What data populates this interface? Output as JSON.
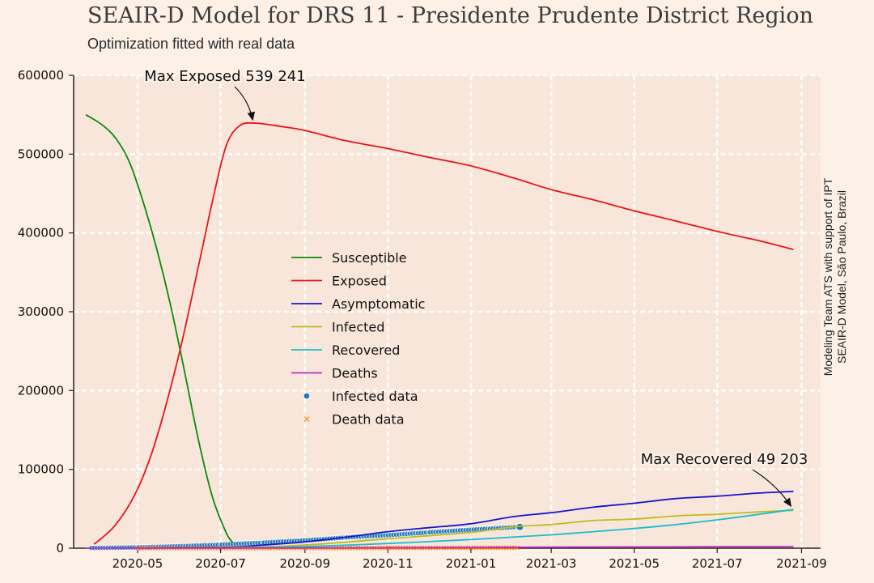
{
  "chart_data": {
    "type": "line",
    "title": "SEAIR-D Model for DRS 11 - Presidente Prudente District Region",
    "subtitle": "Optimization fitted with real data",
    "credit": [
      "Modeling Team ATS with support of IPT",
      "SEAIR-D Model, São Paulo, Brazil"
    ],
    "xlabel": "",
    "ylabel": "",
    "x_range": [
      "2020-03-15",
      "2021-09-15"
    ],
    "ylim": [
      0,
      600000
    ],
    "y_ticks": [
      0,
      100000,
      200000,
      300000,
      400000,
      500000,
      600000
    ],
    "x_ticks": [
      "2020-05",
      "2020-07",
      "2020-09",
      "2020-11",
      "2021-01",
      "2021-03",
      "2021-05",
      "2021-07",
      "2021-09"
    ],
    "grid": true,
    "legend_position": "center-left",
    "series": [
      {
        "name": "Susceptible",
        "color": "#0b8a0b",
        "points": [
          [
            "2020-03-24",
            550000
          ],
          [
            "2020-04-05",
            537000
          ],
          [
            "2020-04-15",
            520000
          ],
          [
            "2020-04-25",
            490000
          ],
          [
            "2020-05-05",
            440000
          ],
          [
            "2020-05-15",
            380000
          ],
          [
            "2020-05-25",
            310000
          ],
          [
            "2020-06-05",
            220000
          ],
          [
            "2020-06-15",
            135000
          ],
          [
            "2020-06-25",
            65000
          ],
          [
            "2020-07-05",
            20000
          ],
          [
            "2020-07-10",
            7000
          ]
        ]
      },
      {
        "name": "Exposed",
        "color": "#e8141a",
        "points": [
          [
            "2020-03-30",
            5000
          ],
          [
            "2020-04-15",
            30000
          ],
          [
            "2020-05-01",
            75000
          ],
          [
            "2020-05-15",
            140000
          ],
          [
            "2020-06-01",
            250000
          ],
          [
            "2020-06-15",
            360000
          ],
          [
            "2020-06-25",
            440000
          ],
          [
            "2020-07-05",
            510000
          ],
          [
            "2020-07-15",
            536000
          ],
          [
            "2020-07-27",
            539241
          ],
          [
            "2020-08-15",
            535000
          ],
          [
            "2020-09-01",
            530000
          ],
          [
            "2020-10-01",
            517000
          ],
          [
            "2020-11-01",
            507000
          ],
          [
            "2020-12-01",
            496000
          ],
          [
            "2021-01-01",
            485000
          ],
          [
            "2021-02-01",
            470000
          ],
          [
            "2021-03-01",
            455000
          ],
          [
            "2021-04-01",
            442000
          ],
          [
            "2021-05-01",
            428000
          ],
          [
            "2021-06-01",
            415000
          ],
          [
            "2021-07-01",
            402000
          ],
          [
            "2021-08-01",
            390000
          ],
          [
            "2021-08-26",
            379000
          ]
        ]
      },
      {
        "name": "Asymptomatic",
        "color": "#1515d0",
        "points": [
          [
            "2020-03-24",
            0
          ],
          [
            "2020-07-01",
            1000
          ],
          [
            "2020-08-01",
            4000
          ],
          [
            "2020-09-01",
            8000
          ],
          [
            "2020-10-01",
            14000
          ],
          [
            "2020-11-01",
            21000
          ],
          [
            "2020-12-01",
            26000
          ],
          [
            "2021-01-01",
            31000
          ],
          [
            "2021-02-01",
            40000
          ],
          [
            "2021-03-01",
            45000
          ],
          [
            "2021-04-01",
            52000
          ],
          [
            "2021-05-01",
            57000
          ],
          [
            "2021-06-01",
            63000
          ],
          [
            "2021-07-01",
            66000
          ],
          [
            "2021-08-01",
            70000
          ],
          [
            "2021-08-26",
            72000
          ]
        ]
      },
      {
        "name": "Infected",
        "color": "#bcbd22",
        "points": [
          [
            "2020-03-24",
            0
          ],
          [
            "2020-07-01",
            500
          ],
          [
            "2020-09-01",
            4000
          ],
          [
            "2020-11-01",
            12000
          ],
          [
            "2021-01-01",
            20000
          ],
          [
            "2021-02-01",
            27000
          ],
          [
            "2021-03-01",
            30000
          ],
          [
            "2021-04-01",
            35000
          ],
          [
            "2021-05-01",
            37000
          ],
          [
            "2021-06-01",
            41000
          ],
          [
            "2021-07-01",
            43000
          ],
          [
            "2021-08-01",
            46000
          ],
          [
            "2021-08-26",
            48000
          ]
        ]
      },
      {
        "name": "Recovered",
        "color": "#17becf",
        "points": [
          [
            "2020-03-24",
            0
          ],
          [
            "2020-07-01",
            300
          ],
          [
            "2020-09-01",
            2000
          ],
          [
            "2020-11-01",
            6000
          ],
          [
            "2021-01-01",
            11000
          ],
          [
            "2021-03-01",
            17000
          ],
          [
            "2021-04-01",
            21000
          ],
          [
            "2021-05-01",
            25000
          ],
          [
            "2021-06-01",
            30000
          ],
          [
            "2021-07-01",
            36000
          ],
          [
            "2021-08-01",
            43000
          ],
          [
            "2021-08-26",
            49203
          ]
        ]
      },
      {
        "name": "Deaths",
        "color": "#bf2fc0",
        "points": [
          [
            "2020-03-24",
            0
          ],
          [
            "2020-11-01",
            500
          ],
          [
            "2021-01-01",
            900
          ],
          [
            "2021-03-01",
            1300
          ],
          [
            "2021-05-01",
            1600
          ],
          [
            "2021-07-01",
            1800
          ],
          [
            "2021-08-26",
            2000
          ]
        ]
      },
      {
        "name": "Infected data",
        "color": "#1f77b4",
        "marker": "dot",
        "points": [
          [
            "2020-03-28",
            300
          ],
          [
            "2020-05-01",
            1000
          ],
          [
            "2020-06-01",
            2500
          ],
          [
            "2020-07-01",
            4500
          ],
          [
            "2020-08-01",
            7000
          ],
          [
            "2020-09-01",
            10000
          ],
          [
            "2020-10-01",
            13500
          ],
          [
            "2020-11-01",
            16500
          ],
          [
            "2020-12-01",
            20000
          ],
          [
            "2021-01-01",
            23500
          ],
          [
            "2021-02-06",
            27000
          ]
        ]
      },
      {
        "name": "Death data",
        "color": "#ff7f0e",
        "marker": "x",
        "points": [
          [
            "2020-05-01",
            20
          ],
          [
            "2020-07-01",
            80
          ],
          [
            "2020-09-01",
            200
          ],
          [
            "2020-11-01",
            350
          ],
          [
            "2021-01-01",
            500
          ],
          [
            "2021-02-06",
            600
          ]
        ]
      }
    ],
    "annotations": [
      {
        "text": "Max Exposed 539 241",
        "at": [
          "2020-07-27",
          539241
        ]
      },
      {
        "text": "Max Recovered 49 203",
        "at": [
          "2021-08-26",
          49203
        ]
      }
    ]
  }
}
